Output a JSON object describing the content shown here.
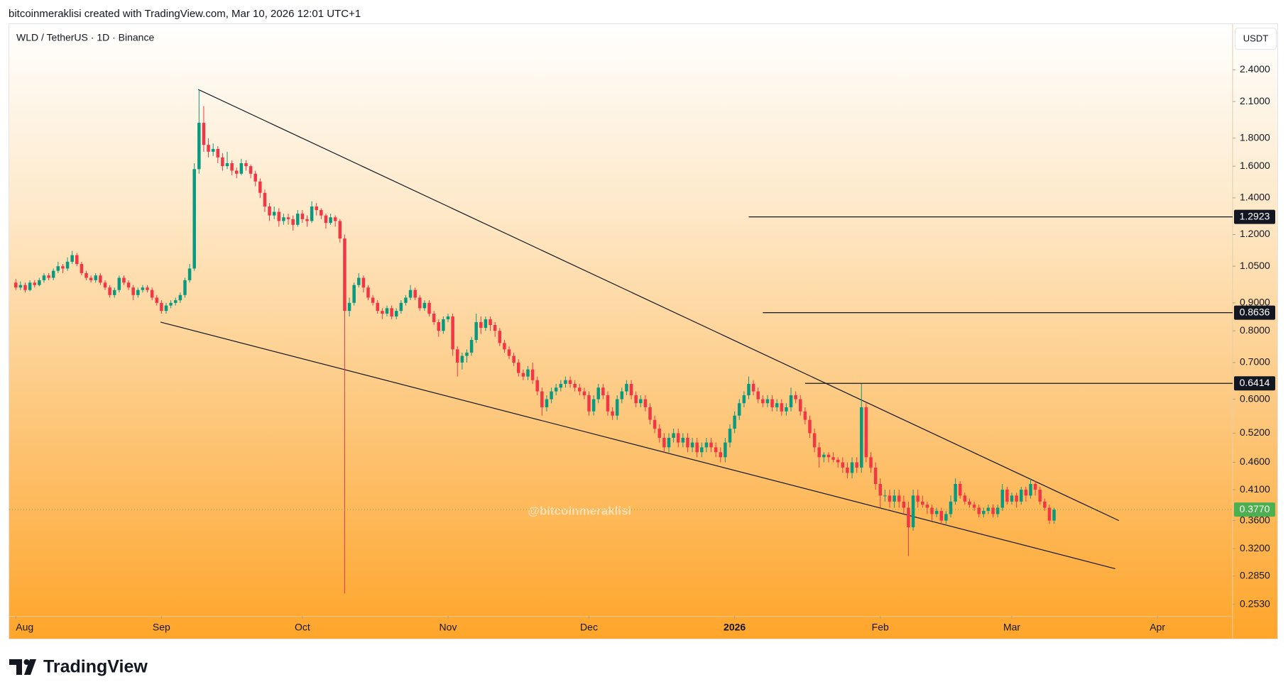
{
  "header": "bitcoinmeraklisi created with TradingView.com, Mar 10, 2026 12:01 UTC+1",
  "chart_data": {
    "type": "candlestick",
    "title": "WLD / TetherUS · 1D · Binance",
    "currency": "USDT",
    "watermark": "@bitcoinmeraklisi",
    "log_scale": true,
    "grid": false,
    "colors": {
      "up": "#089981",
      "down": "#f23645"
    },
    "ylim": [
      0.241,
      2.9
    ],
    "yticks": [
      {
        "value": 2.4,
        "label": "2.4000"
      },
      {
        "value": 2.1,
        "label": "2.1000"
      },
      {
        "value": 1.8,
        "label": "1.8000"
      },
      {
        "value": 1.6,
        "label": "1.6000"
      },
      {
        "value": 1.4,
        "label": "1.4000"
      },
      {
        "value": 1.2,
        "label": "1.2000"
      },
      {
        "value": 1.05,
        "label": "1.0500"
      },
      {
        "value": 0.9,
        "label": "0.9000"
      },
      {
        "value": 0.8,
        "label": "0.8000"
      },
      {
        "value": 0.7,
        "label": "0.7000"
      },
      {
        "value": 0.6,
        "label": "0.6000"
      },
      {
        "value": 0.52,
        "label": "0.5200"
      },
      {
        "value": 0.46,
        "label": "0.4600"
      },
      {
        "value": 0.41,
        "label": "0.4100"
      },
      {
        "value": 0.36,
        "label": "0.3600"
      },
      {
        "value": 0.32,
        "label": "0.3200"
      },
      {
        "value": 0.285,
        "label": "0.2850"
      },
      {
        "value": 0.253,
        "label": "0.2530"
      }
    ],
    "xlim": [
      -1.4,
      259
    ],
    "xticks": [
      {
        "value": 0,
        "label": "Aug"
      },
      {
        "value": 31,
        "label": "Sep"
      },
      {
        "value": 61,
        "label": "Oct"
      },
      {
        "value": 92,
        "label": "Nov"
      },
      {
        "value": 122,
        "label": "Dec"
      },
      {
        "value": 153,
        "label": "2026",
        "bold": true
      },
      {
        "value": 184,
        "label": "Feb"
      },
      {
        "value": 212,
        "label": "Mar"
      },
      {
        "value": 243,
        "label": "Apr"
      }
    ],
    "levels": [
      {
        "value": 1.2923,
        "start": 156
      },
      {
        "value": 0.8636,
        "start": 159
      },
      {
        "value": 0.6414,
        "start": 168
      }
    ],
    "trendlines": [
      {
        "x": [
          38.8,
          234.8
        ],
        "y": [
          2.21,
          0.36
        ]
      },
      {
        "x": [
          30.8,
          234
        ],
        "y": [
          0.83,
          0.294
        ]
      }
    ],
    "last_price": {
      "value": 0.377,
      "label": "0.3770"
    },
    "ohlc": [
      [
        0.98,
        0.995,
        0.95,
        0.96
      ],
      [
        0.96,
        0.985,
        0.95,
        0.97
      ],
      [
        0.97,
        0.98,
        0.94,
        0.95
      ],
      [
        0.95,
        0.99,
        0.945,
        0.98
      ],
      [
        0.98,
        0.99,
        0.96,
        0.97
      ],
      [
        0.97,
        1.0,
        0.965,
        0.99
      ],
      [
        0.99,
        1.02,
        0.98,
        1.01
      ],
      [
        1.01,
        1.02,
        0.99,
        1.0
      ],
      [
        1.0,
        1.04,
        0.99,
        1.03
      ],
      [
        1.03,
        1.07,
        1.02,
        1.05
      ],
      [
        1.05,
        1.06,
        1.02,
        1.04
      ],
      [
        1.04,
        1.09,
        1.03,
        1.07
      ],
      [
        1.07,
        1.12,
        1.06,
        1.1
      ],
      [
        1.1,
        1.11,
        1.05,
        1.06
      ],
      [
        1.06,
        1.07,
        1.01,
        1.02
      ],
      [
        1.02,
        1.03,
        0.99,
        1.0
      ],
      [
        1.0,
        1.01,
        0.98,
        0.99
      ],
      [
        0.99,
        1.02,
        0.98,
        1.01
      ],
      [
        1.01,
        1.02,
        0.97,
        0.98
      ],
      [
        0.98,
        0.99,
        0.95,
        0.96
      ],
      [
        0.96,
        0.97,
        0.92,
        0.93
      ],
      [
        0.93,
        0.96,
        0.92,
        0.95
      ],
      [
        0.95,
        1.01,
        0.94,
        1.0
      ],
      [
        1.0,
        1.01,
        0.97,
        0.98
      ],
      [
        0.98,
        0.99,
        0.95,
        0.96
      ],
      [
        0.96,
        0.97,
        0.91,
        0.93
      ],
      [
        0.93,
        0.96,
        0.92,
        0.95
      ],
      [
        0.95,
        0.97,
        0.94,
        0.96
      ],
      [
        0.96,
        0.97,
        0.94,
        0.95
      ],
      [
        0.95,
        0.96,
        0.91,
        0.92
      ],
      [
        0.92,
        0.93,
        0.89,
        0.9
      ],
      [
        0.9,
        0.91,
        0.86,
        0.87
      ],
      [
        0.87,
        0.9,
        0.86,
        0.89
      ],
      [
        0.89,
        0.91,
        0.88,
        0.9
      ],
      [
        0.9,
        0.92,
        0.89,
        0.91
      ],
      [
        0.91,
        0.94,
        0.9,
        0.93
      ],
      [
        0.93,
        1.0,
        0.92,
        0.99
      ],
      [
        0.99,
        1.06,
        0.98,
        1.04
      ],
      [
        1.04,
        1.62,
        1.03,
        1.58
      ],
      [
        1.58,
        2.21,
        1.55,
        1.92
      ],
      [
        1.92,
        2.06,
        1.7,
        1.75
      ],
      [
        1.75,
        1.8,
        1.66,
        1.7
      ],
      [
        1.7,
        1.76,
        1.67,
        1.72
      ],
      [
        1.72,
        1.74,
        1.62,
        1.66
      ],
      [
        1.66,
        1.69,
        1.57,
        1.6
      ],
      [
        1.6,
        1.7,
        1.58,
        1.62
      ],
      [
        1.62,
        1.64,
        1.54,
        1.57
      ],
      [
        1.57,
        1.59,
        1.52,
        1.55
      ],
      [
        1.55,
        1.65,
        1.54,
        1.62
      ],
      [
        1.62,
        1.64,
        1.57,
        1.6
      ],
      [
        1.6,
        1.61,
        1.52,
        1.55
      ],
      [
        1.55,
        1.57,
        1.47,
        1.5
      ],
      [
        1.5,
        1.52,
        1.4,
        1.43
      ],
      [
        1.43,
        1.45,
        1.32,
        1.35
      ],
      [
        1.35,
        1.37,
        1.27,
        1.3
      ],
      [
        1.3,
        1.35,
        1.28,
        1.32
      ],
      [
        1.32,
        1.34,
        1.24,
        1.27
      ],
      [
        1.27,
        1.31,
        1.25,
        1.29
      ],
      [
        1.29,
        1.31,
        1.25,
        1.28
      ],
      [
        1.28,
        1.3,
        1.22,
        1.25
      ],
      [
        1.25,
        1.33,
        1.24,
        1.31
      ],
      [
        1.31,
        1.33,
        1.26,
        1.28
      ],
      [
        1.28,
        1.3,
        1.24,
        1.27
      ],
      [
        1.27,
        1.38,
        1.26,
        1.35
      ],
      [
        1.35,
        1.37,
        1.3,
        1.33
      ],
      [
        1.33,
        1.34,
        1.28,
        1.3
      ],
      [
        1.3,
        1.31,
        1.23,
        1.26
      ],
      [
        1.26,
        1.31,
        1.25,
        1.29
      ],
      [
        1.29,
        1.3,
        1.24,
        1.27
      ],
      [
        1.27,
        1.28,
        1.16,
        1.18
      ],
      [
        1.18,
        1.2,
        0.265,
        0.87
      ],
      [
        0.87,
        0.92,
        0.85,
        0.9
      ],
      [
        0.9,
        0.98,
        0.89,
        0.97
      ],
      [
        0.97,
        1.02,
        0.96,
        1.0
      ],
      [
        1.0,
        1.01,
        0.94,
        0.96
      ],
      [
        0.96,
        0.97,
        0.91,
        0.92
      ],
      [
        0.92,
        0.93,
        0.89,
        0.9
      ],
      [
        0.9,
        0.91,
        0.86,
        0.87
      ],
      [
        0.87,
        0.88,
        0.84,
        0.86
      ],
      [
        0.86,
        0.89,
        0.85,
        0.88
      ],
      [
        0.88,
        0.89,
        0.84,
        0.85
      ],
      [
        0.85,
        0.88,
        0.84,
        0.87
      ],
      [
        0.87,
        0.91,
        0.86,
        0.9
      ],
      [
        0.9,
        0.93,
        0.89,
        0.92
      ],
      [
        0.92,
        0.97,
        0.91,
        0.95
      ],
      [
        0.95,
        0.96,
        0.91,
        0.92
      ],
      [
        0.92,
        0.93,
        0.87,
        0.88
      ],
      [
        0.88,
        0.91,
        0.87,
        0.9
      ],
      [
        0.9,
        0.91,
        0.85,
        0.86
      ],
      [
        0.86,
        0.87,
        0.82,
        0.83
      ],
      [
        0.83,
        0.84,
        0.78,
        0.8
      ],
      [
        0.8,
        0.85,
        0.79,
        0.84
      ],
      [
        0.84,
        0.86,
        0.83,
        0.85
      ],
      [
        0.85,
        0.86,
        0.72,
        0.74
      ],
      [
        0.74,
        0.75,
        0.66,
        0.7
      ],
      [
        0.7,
        0.73,
        0.68,
        0.72
      ],
      [
        0.72,
        0.74,
        0.7,
        0.73
      ],
      [
        0.73,
        0.78,
        0.72,
        0.77
      ],
      [
        0.77,
        0.86,
        0.76,
        0.83
      ],
      [
        0.83,
        0.85,
        0.79,
        0.81
      ],
      [
        0.81,
        0.85,
        0.8,
        0.84
      ],
      [
        0.84,
        0.85,
        0.8,
        0.82
      ],
      [
        0.82,
        0.83,
        0.78,
        0.8
      ],
      [
        0.8,
        0.81,
        0.75,
        0.76
      ],
      [
        0.76,
        0.77,
        0.73,
        0.74
      ],
      [
        0.74,
        0.75,
        0.71,
        0.72
      ],
      [
        0.72,
        0.73,
        0.69,
        0.7
      ],
      [
        0.7,
        0.71,
        0.66,
        0.67
      ],
      [
        0.67,
        0.68,
        0.65,
        0.66
      ],
      [
        0.66,
        0.69,
        0.65,
        0.68
      ],
      [
        0.68,
        0.7,
        0.64,
        0.65
      ],
      [
        0.65,
        0.66,
        0.61,
        0.62
      ],
      [
        0.62,
        0.63,
        0.56,
        0.58
      ],
      [
        0.58,
        0.61,
        0.57,
        0.6
      ],
      [
        0.6,
        0.63,
        0.59,
        0.62
      ],
      [
        0.62,
        0.64,
        0.61,
        0.63
      ],
      [
        0.63,
        0.65,
        0.62,
        0.64
      ],
      [
        0.64,
        0.66,
        0.63,
        0.65
      ],
      [
        0.65,
        0.66,
        0.63,
        0.64
      ],
      [
        0.64,
        0.65,
        0.62,
        0.63
      ],
      [
        0.63,
        0.64,
        0.61,
        0.62
      ],
      [
        0.62,
        0.63,
        0.6,
        0.61
      ],
      [
        0.61,
        0.62,
        0.56,
        0.57
      ],
      [
        0.57,
        0.61,
        0.56,
        0.6
      ],
      [
        0.6,
        0.64,
        0.59,
        0.63
      ],
      [
        0.63,
        0.64,
        0.6,
        0.61
      ],
      [
        0.61,
        0.62,
        0.56,
        0.57
      ],
      [
        0.57,
        0.58,
        0.55,
        0.56
      ],
      [
        0.56,
        0.61,
        0.55,
        0.6
      ],
      [
        0.6,
        0.63,
        0.59,
        0.62
      ],
      [
        0.62,
        0.65,
        0.61,
        0.64
      ],
      [
        0.64,
        0.65,
        0.6,
        0.61
      ],
      [
        0.61,
        0.62,
        0.58,
        0.59
      ],
      [
        0.59,
        0.61,
        0.58,
        0.6
      ],
      [
        0.6,
        0.61,
        0.57,
        0.58
      ],
      [
        0.58,
        0.59,
        0.54,
        0.55
      ],
      [
        0.55,
        0.56,
        0.52,
        0.53
      ],
      [
        0.53,
        0.54,
        0.5,
        0.51
      ],
      [
        0.51,
        0.52,
        0.48,
        0.49
      ],
      [
        0.49,
        0.52,
        0.48,
        0.51
      ],
      [
        0.51,
        0.53,
        0.5,
        0.52
      ],
      [
        0.52,
        0.53,
        0.49,
        0.5
      ],
      [
        0.5,
        0.52,
        0.49,
        0.51
      ],
      [
        0.51,
        0.52,
        0.48,
        0.49
      ],
      [
        0.49,
        0.51,
        0.48,
        0.5
      ],
      [
        0.5,
        0.51,
        0.47,
        0.48
      ],
      [
        0.48,
        0.5,
        0.47,
        0.49
      ],
      [
        0.49,
        0.51,
        0.48,
        0.5
      ],
      [
        0.5,
        0.51,
        0.48,
        0.49
      ],
      [
        0.49,
        0.5,
        0.47,
        0.48
      ],
      [
        0.48,
        0.49,
        0.46,
        0.47
      ],
      [
        0.47,
        0.51,
        0.46,
        0.5
      ],
      [
        0.5,
        0.54,
        0.49,
        0.53
      ],
      [
        0.53,
        0.57,
        0.52,
        0.56
      ],
      [
        0.56,
        0.6,
        0.55,
        0.59
      ],
      [
        0.59,
        0.62,
        0.58,
        0.61
      ],
      [
        0.61,
        0.66,
        0.6,
        0.64
      ],
      [
        0.64,
        0.65,
        0.61,
        0.62
      ],
      [
        0.62,
        0.63,
        0.59,
        0.6
      ],
      [
        0.6,
        0.61,
        0.58,
        0.59
      ],
      [
        0.59,
        0.61,
        0.58,
        0.6
      ],
      [
        0.6,
        0.61,
        0.57,
        0.58
      ],
      [
        0.58,
        0.6,
        0.57,
        0.59
      ],
      [
        0.59,
        0.6,
        0.56,
        0.57
      ],
      [
        0.57,
        0.59,
        0.56,
        0.58
      ],
      [
        0.58,
        0.63,
        0.57,
        0.61
      ],
      [
        0.61,
        0.62,
        0.59,
        0.6
      ],
      [
        0.6,
        0.61,
        0.56,
        0.57
      ],
      [
        0.57,
        0.58,
        0.54,
        0.55
      ],
      [
        0.55,
        0.56,
        0.51,
        0.52
      ],
      [
        0.52,
        0.53,
        0.48,
        0.49
      ],
      [
        0.49,
        0.5,
        0.45,
        0.47
      ],
      [
        0.47,
        0.48,
        0.46,
        0.475
      ],
      [
        0.475,
        0.48,
        0.46,
        0.47
      ],
      [
        0.47,
        0.48,
        0.46,
        0.465
      ],
      [
        0.465,
        0.47,
        0.45,
        0.46
      ],
      [
        0.46,
        0.47,
        0.44,
        0.45
      ],
      [
        0.45,
        0.46,
        0.43,
        0.44
      ],
      [
        0.44,
        0.47,
        0.43,
        0.46
      ],
      [
        0.46,
        0.47,
        0.44,
        0.45
      ],
      [
        0.45,
        0.64,
        0.44,
        0.58
      ],
      [
        0.58,
        0.59,
        0.46,
        0.47
      ],
      [
        0.47,
        0.48,
        0.44,
        0.45
      ],
      [
        0.45,
        0.46,
        0.41,
        0.42
      ],
      [
        0.42,
        0.43,
        0.38,
        0.4
      ],
      [
        0.4,
        0.41,
        0.39,
        0.4
      ],
      [
        0.4,
        0.41,
        0.38,
        0.39
      ],
      [
        0.39,
        0.41,
        0.38,
        0.4
      ],
      [
        0.4,
        0.41,
        0.38,
        0.39
      ],
      [
        0.39,
        0.4,
        0.37,
        0.38
      ],
      [
        0.38,
        0.39,
        0.31,
        0.35
      ],
      [
        0.35,
        0.41,
        0.345,
        0.4
      ],
      [
        0.4,
        0.41,
        0.38,
        0.39
      ],
      [
        0.39,
        0.4,
        0.38,
        0.385
      ],
      [
        0.385,
        0.39,
        0.37,
        0.38
      ],
      [
        0.38,
        0.385,
        0.36,
        0.37
      ],
      [
        0.37,
        0.38,
        0.365,
        0.375
      ],
      [
        0.375,
        0.38,
        0.355,
        0.36
      ],
      [
        0.36,
        0.375,
        0.355,
        0.37
      ],
      [
        0.37,
        0.4,
        0.365,
        0.39
      ],
      [
        0.39,
        0.43,
        0.385,
        0.42
      ],
      [
        0.42,
        0.425,
        0.395,
        0.4
      ],
      [
        0.4,
        0.405,
        0.385,
        0.39
      ],
      [
        0.39,
        0.395,
        0.38,
        0.385
      ],
      [
        0.385,
        0.39,
        0.375,
        0.38
      ],
      [
        0.38,
        0.385,
        0.365,
        0.37
      ],
      [
        0.37,
        0.38,
        0.365,
        0.375
      ],
      [
        0.375,
        0.385,
        0.37,
        0.38
      ],
      [
        0.38,
        0.385,
        0.365,
        0.37
      ],
      [
        0.37,
        0.385,
        0.365,
        0.38
      ],
      [
        0.38,
        0.42,
        0.375,
        0.41
      ],
      [
        0.41,
        0.415,
        0.385,
        0.39
      ],
      [
        0.39,
        0.405,
        0.385,
        0.4
      ],
      [
        0.4,
        0.405,
        0.38,
        0.39
      ],
      [
        0.39,
        0.415,
        0.385,
        0.41
      ],
      [
        0.41,
        0.415,
        0.39,
        0.4
      ],
      [
        0.4,
        0.43,
        0.395,
        0.42
      ],
      [
        0.42,
        0.425,
        0.4,
        0.41
      ],
      [
        0.41,
        0.415,
        0.385,
        0.39
      ],
      [
        0.39,
        0.395,
        0.375,
        0.38
      ],
      [
        0.38,
        0.385,
        0.355,
        0.36
      ],
      [
        0.36,
        0.38,
        0.355,
        0.377
      ]
    ]
  },
  "footer": {
    "brand": "TradingView"
  }
}
